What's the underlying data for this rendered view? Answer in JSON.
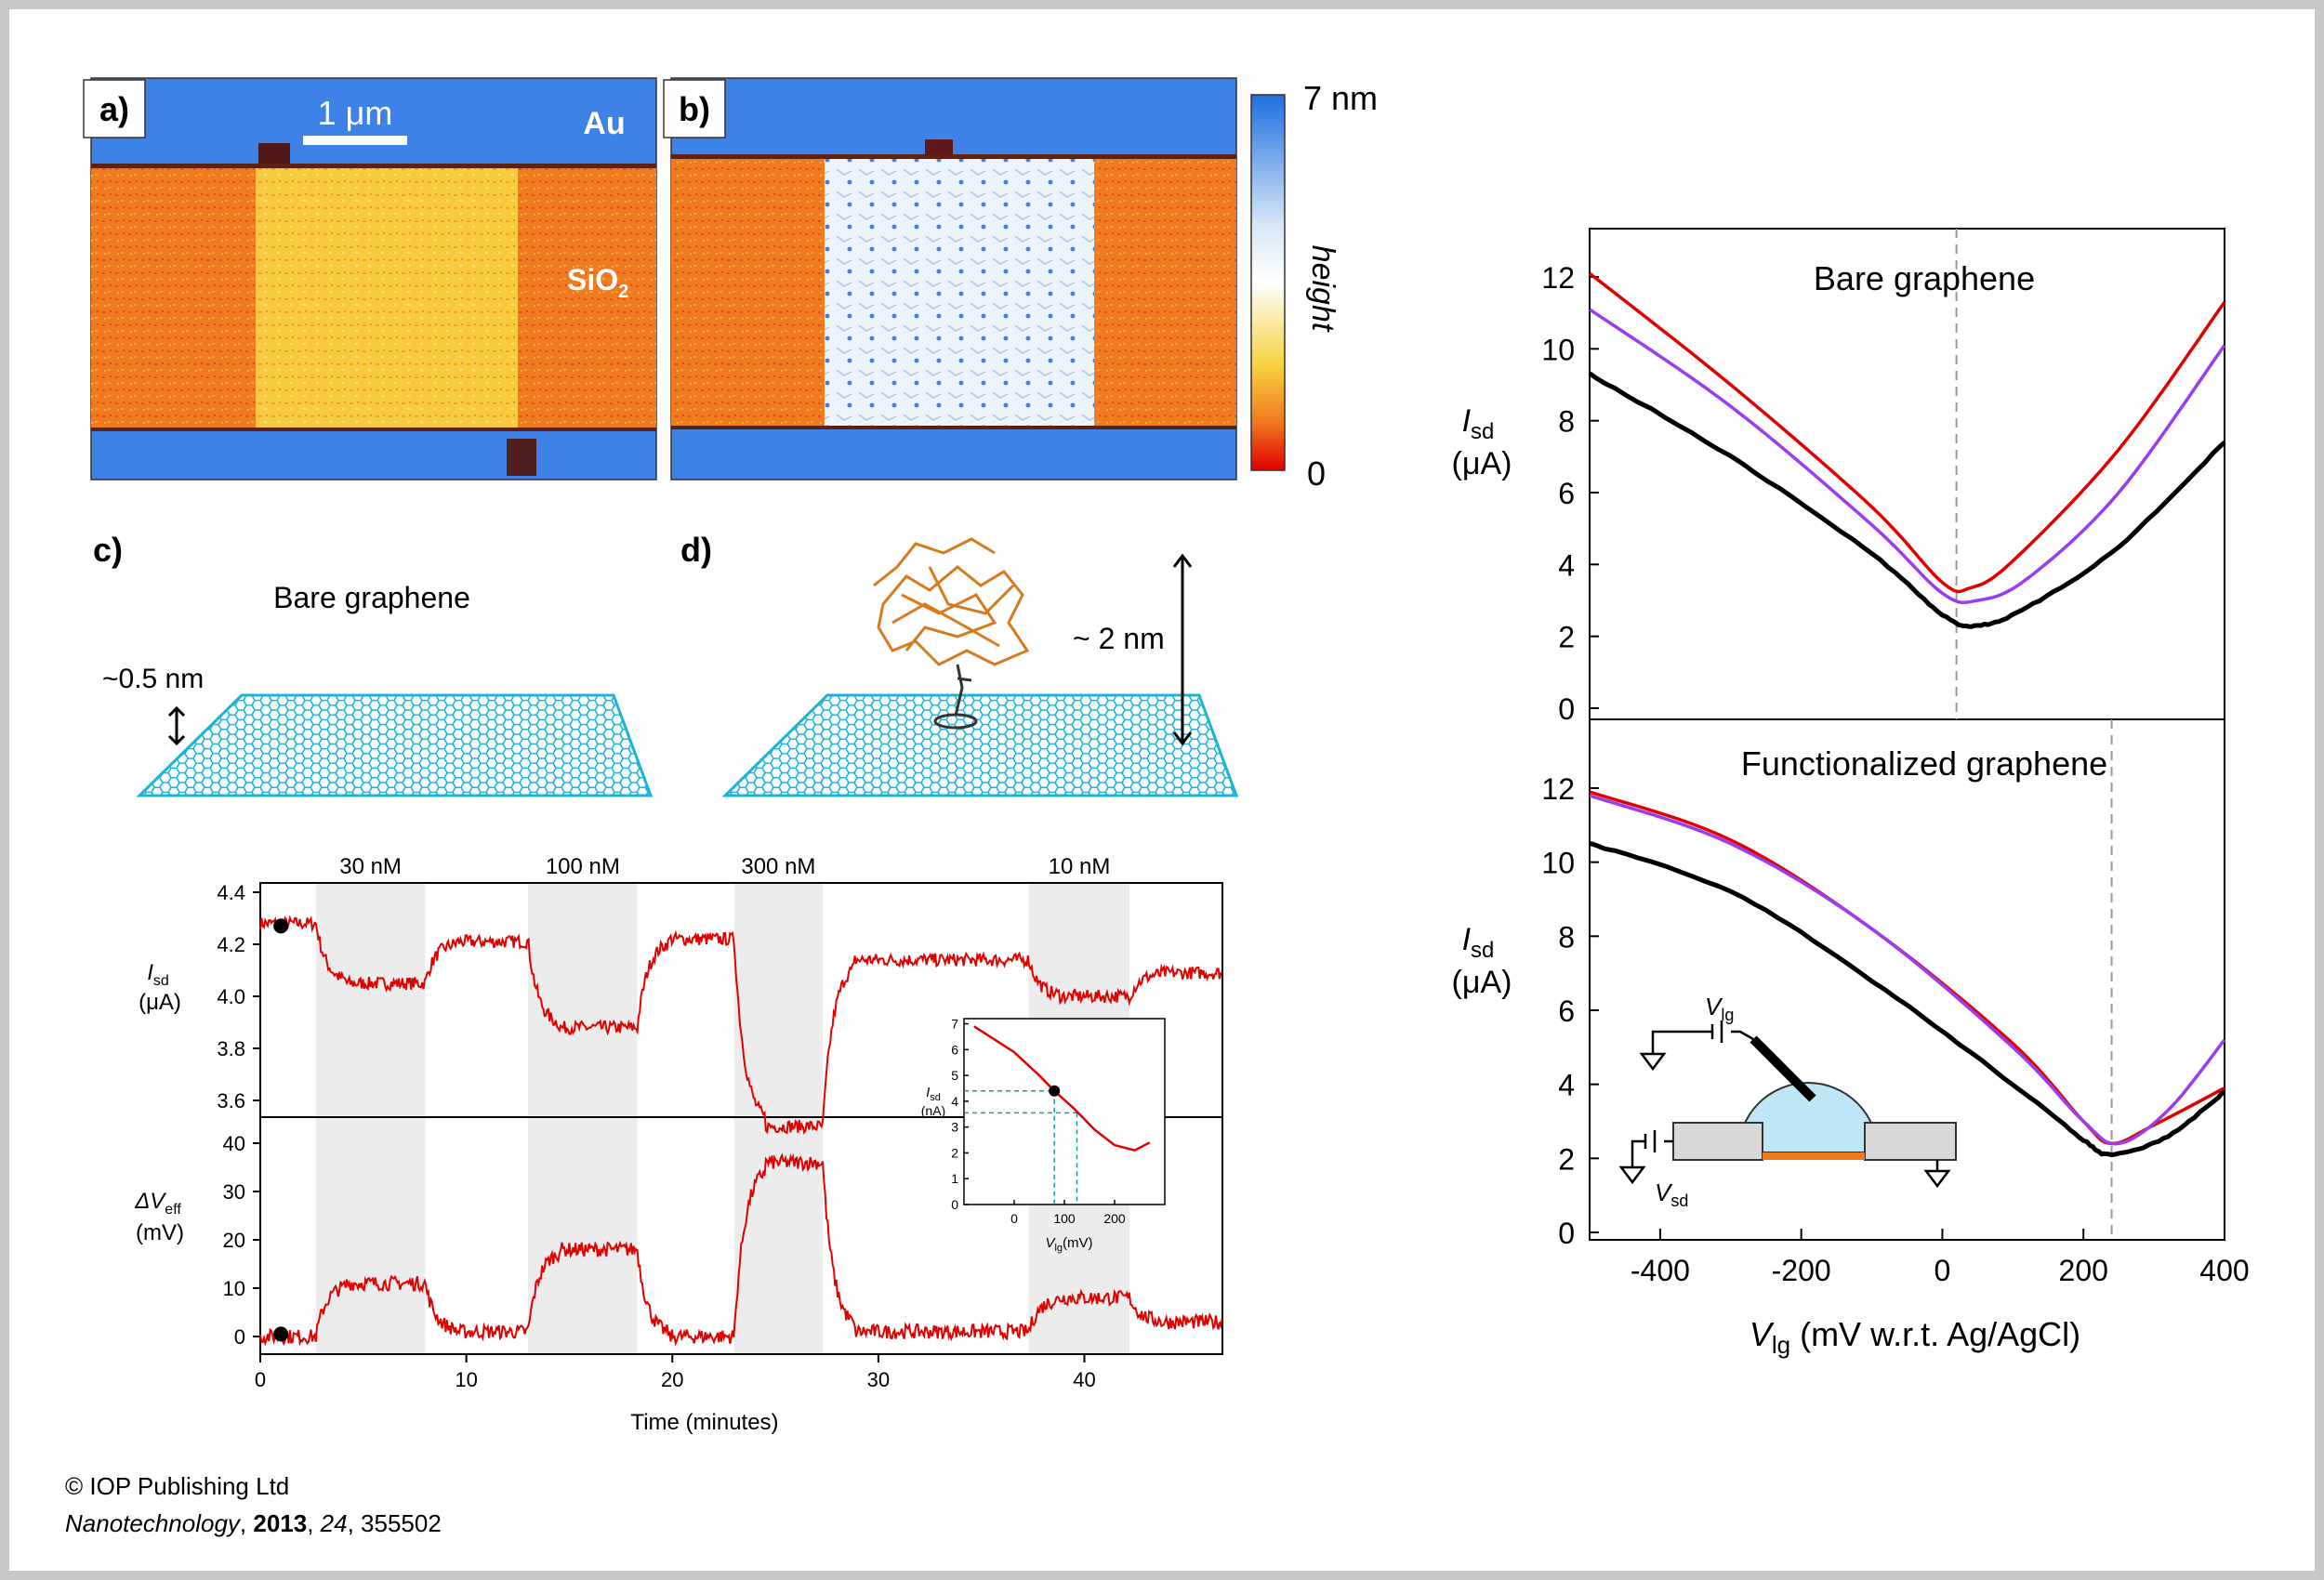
{
  "labels": {
    "a": "a)",
    "b": "b)",
    "c": "c)",
    "d": "d)",
    "scalebar": "1 μm",
    "au": "Au",
    "sio2_main": "SiO",
    "sio2_sub": "2",
    "cb_top": "7 nm",
    "cb_bottom": "0",
    "cb_title": "height",
    "bare": "Bare graphene",
    "thickness": "~0.5 nm",
    "height2": "~ 2 nm"
  },
  "colors": {
    "au_blue": "#3e82e8",
    "sio2_orange": "#f07a20",
    "graphene_yellow": "#f8d240",
    "functional_white": "#eef4fb",
    "trace_red": "#e00000",
    "purple": "#9a3cf0",
    "lattice": "#1ab4d8"
  },
  "time_plot": {
    "conc": [
      "30 nM",
      "100 nM",
      "300 nM",
      "10 nM"
    ],
    "shade_minutes": [
      [
        2.7,
        8.0
      ],
      [
        13.0,
        18.3
      ],
      [
        23.0,
        27.3
      ],
      [
        37.3,
        42.2
      ]
    ],
    "xlabel": "Time (minutes)",
    "xticks": [
      "0",
      "10",
      "20",
      "30",
      "40"
    ],
    "top_ylabel_main": "I",
    "top_ylabel_sub": "sd",
    "top_ylabel_unit": "(μA)",
    "top_yticks": [
      "4.4",
      "4.2",
      "4.0",
      "3.8",
      "3.6"
    ],
    "bottom_ylabel_main": "ΔV",
    "bottom_ylabel_sub": "eff",
    "bottom_ylabel_unit": "(mV)",
    "bottom_yticks": [
      "40",
      "30",
      "20",
      "10",
      "0"
    ],
    "levels_isd": [
      {
        "t0": 0,
        "t1": 2.7,
        "v": 4.28
      },
      {
        "t0": 2.7,
        "t1": 8.0,
        "v": 4.05
      },
      {
        "t0": 8.0,
        "t1": 13.0,
        "v": 4.21
      },
      {
        "t0": 13.0,
        "t1": 18.3,
        "v": 3.88
      },
      {
        "t0": 18.3,
        "t1": 23.0,
        "v": 4.22
      },
      {
        "t0": 23.0,
        "t1": 27.3,
        "v": 3.5
      },
      {
        "t0": 27.3,
        "t1": 37.3,
        "v": 4.14
      },
      {
        "t0": 37.3,
        "t1": 42.2,
        "v": 4.0
      },
      {
        "t0": 42.2,
        "t1": 46.7,
        "v": 4.09
      }
    ],
    "levels_dv": [
      {
        "t0": 0,
        "t1": 2.7,
        "v": 0
      },
      {
        "t0": 2.7,
        "t1": 8.0,
        "v": 11
      },
      {
        "t0": 8.0,
        "t1": 13.0,
        "v": 1
      },
      {
        "t0": 13.0,
        "t1": 18.3,
        "v": 18
      },
      {
        "t0": 18.3,
        "t1": 23.0,
        "v": 0
      },
      {
        "t0": 23.0,
        "t1": 27.3,
        "v": 36
      },
      {
        "t0": 27.3,
        "t1": 37.3,
        "v": 1
      },
      {
        "t0": 37.3,
        "t1": 42.2,
        "v": 8
      },
      {
        "t0": 42.2,
        "t1": 46.7,
        "v": 3
      }
    ]
  },
  "inset": {
    "ylabel_main": "I",
    "ylabel_sub": "sd",
    "ylabel_unit": "(nA)",
    "xlabel_main": "V",
    "xlabel_sub": "lg",
    "xlabel_unit": "(mV)",
    "yticks": [
      "7",
      "6",
      "5",
      "4",
      "3",
      "2",
      "1",
      "0"
    ],
    "xticks": [
      "0",
      "100",
      "200"
    ],
    "curve": [
      [
        -80,
        6.9
      ],
      [
        0,
        5.9
      ],
      [
        50,
        5.0
      ],
      [
        80,
        4.4
      ],
      [
        120,
        3.7
      ],
      [
        160,
        2.9
      ],
      [
        200,
        2.3
      ],
      [
        240,
        2.1
      ],
      [
        270,
        2.4
      ]
    ],
    "marker": [
      80,
      4.4
    ]
  },
  "right_plot": {
    "top_title": "Bare graphene",
    "bottom_title": "Functionalized graphene",
    "ylabel_main": "I",
    "ylabel_sub": "sd",
    "ylabel_unit": "(μA)",
    "yticks": [
      "12",
      "10",
      "8",
      "6",
      "4",
      "2",
      "0"
    ],
    "xticks": [
      "-400",
      "-200",
      "0",
      "200",
      "400"
    ],
    "xlabel_main": "V",
    "xlabel_sub": "lg",
    "xlabel_rest": " (mV w.r.t. Ag/AgCl)",
    "vlg": "V",
    "vlg_sub": "lg",
    "vsd": "V",
    "vsd_sub": "sd",
    "top_dirac_mV": 20,
    "bottom_dirac_mV": 240,
    "top_series": [
      {
        "name": "red",
        "color": "#e00000",
        "points": [
          [
            -500,
            12.1
          ],
          [
            -300,
            9.0
          ],
          [
            -100,
            5.6
          ],
          [
            0,
            3.5
          ],
          [
            40,
            3.35
          ],
          [
            100,
            4.1
          ],
          [
            250,
            7.2
          ],
          [
            400,
            11.3
          ]
        ]
      },
      {
        "name": "purple",
        "color": "#9a3cf0",
        "points": [
          [
            -500,
            11.1
          ],
          [
            -300,
            8.4
          ],
          [
            -100,
            5.1
          ],
          [
            0,
            3.2
          ],
          [
            50,
            3.0
          ],
          [
            120,
            3.6
          ],
          [
            250,
            6.0
          ],
          [
            400,
            10.1
          ]
        ]
      },
      {
        "name": "black",
        "color": "#000000",
        "points": [
          [
            -500,
            9.3
          ],
          [
            -300,
            7.0
          ],
          [
            -100,
            4.3
          ],
          [
            0,
            2.6
          ],
          [
            50,
            2.3
          ],
          [
            120,
            2.8
          ],
          [
            250,
            4.5
          ],
          [
            400,
            7.4
          ]
        ]
      }
    ],
    "bottom_series": [
      {
        "name": "red",
        "color": "#e00000",
        "points": [
          [
            -500,
            11.9
          ],
          [
            -300,
            10.6
          ],
          [
            -100,
            8.2
          ],
          [
            100,
            5.1
          ],
          [
            200,
            3.0
          ],
          [
            240,
            2.4
          ],
          [
            300,
            2.9
          ],
          [
            400,
            3.9
          ]
        ]
      },
      {
        "name": "purple",
        "color": "#9a3cf0",
        "points": [
          [
            -500,
            11.8
          ],
          [
            -300,
            10.5
          ],
          [
            -100,
            8.2
          ],
          [
            100,
            5.0
          ],
          [
            200,
            3.0
          ],
          [
            250,
            2.4
          ],
          [
            320,
            3.3
          ],
          [
            400,
            5.2
          ]
        ]
      },
      {
        "name": "black",
        "color": "#000000",
        "points": [
          [
            -500,
            10.5
          ],
          [
            -300,
            9.2
          ],
          [
            -100,
            6.8
          ],
          [
            100,
            4.0
          ],
          [
            200,
            2.5
          ],
          [
            240,
            2.1
          ],
          [
            320,
            2.6
          ],
          [
            400,
            3.8
          ]
        ]
      }
    ]
  },
  "citation": {
    "line1": "© IOP Publishing Ltd",
    "journal": "Nanotechnology",
    "sep1": ", ",
    "year": "2013",
    "sep2": ", ",
    "volume": "24",
    "rest": ", 355502"
  }
}
